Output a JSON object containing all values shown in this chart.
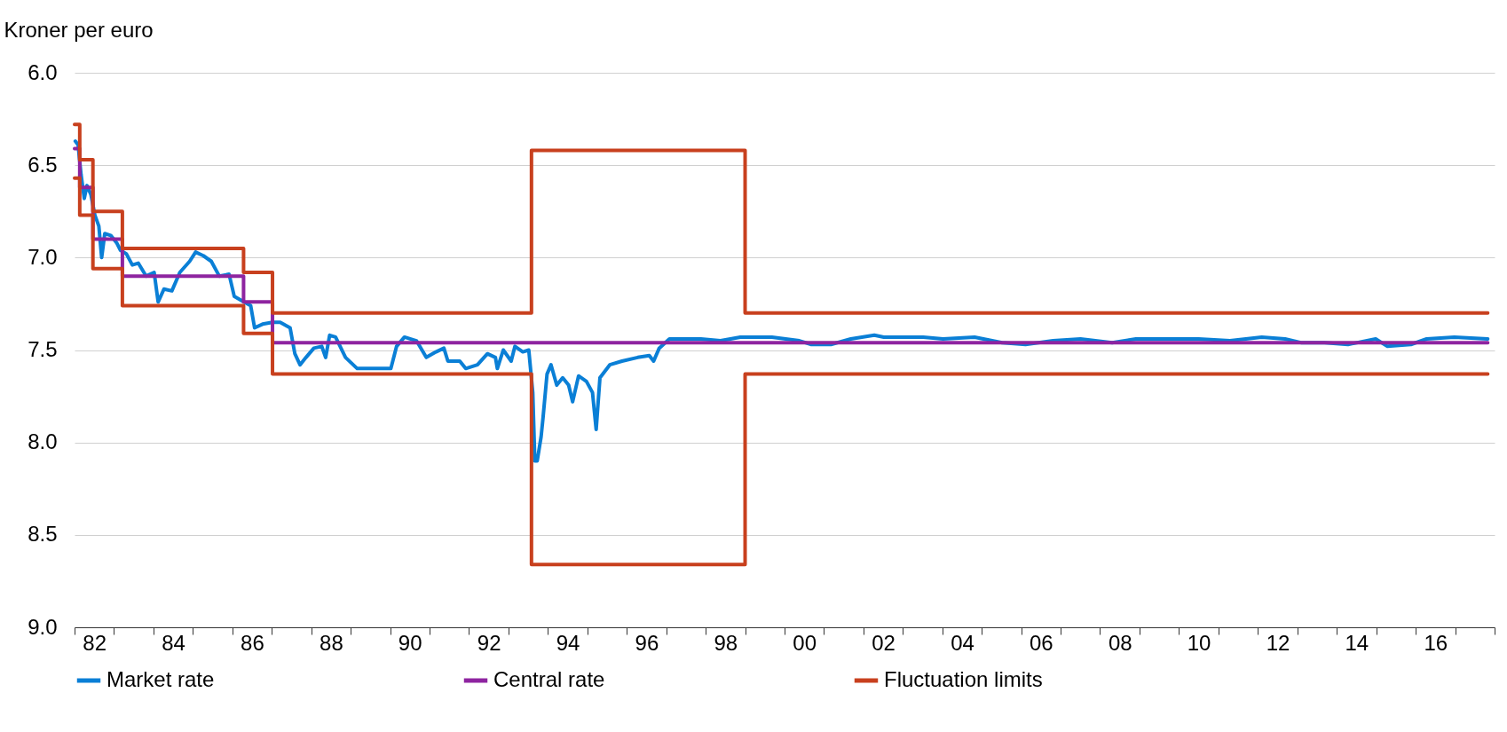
{
  "chart_data": {
    "type": "line",
    "ylabel": "Kroner per euro",
    "xlim": [
      "1982-01-01",
      "2018-01-01"
    ],
    "ylim": [
      9,
      6
    ],
    "yticks": [
      {
        "value": 6,
        "label": "6.0"
      },
      {
        "value": 6.5,
        "label": "6.5"
      },
      {
        "value": 7,
        "label": "7.0"
      },
      {
        "value": 7.5,
        "label": "7.5"
      },
      {
        "value": 8,
        "label": "8.0"
      },
      {
        "value": 8.5,
        "label": "8.5"
      },
      {
        "value": 9,
        "label": "9.0"
      }
    ],
    "xticks": [
      {
        "value": "1982-01-01",
        "label": null
      },
      {
        "value": "1982-07-02",
        "label": "82"
      },
      {
        "value": "1983-01-01",
        "label": null
      },
      {
        "value": "1984-01-01",
        "label": null
      },
      {
        "value": "1984-07-02",
        "label": "84"
      },
      {
        "value": "1985-01-01",
        "label": null
      },
      {
        "value": "1986-01-01",
        "label": null
      },
      {
        "value": "1986-07-02",
        "label": "86"
      },
      {
        "value": "1987-01-01",
        "label": null
      },
      {
        "value": "1988-01-01",
        "label": null
      },
      {
        "value": "1988-07-02",
        "label": "88"
      },
      {
        "value": "1989-01-01",
        "label": null
      },
      {
        "value": "1990-01-01",
        "label": null
      },
      {
        "value": "1990-07-02",
        "label": "90"
      },
      {
        "value": "1991-01-01",
        "label": null
      },
      {
        "value": "1992-01-01",
        "label": null
      },
      {
        "value": "1992-07-02",
        "label": "92"
      },
      {
        "value": "1993-01-01",
        "label": null
      },
      {
        "value": "1994-01-01",
        "label": null
      },
      {
        "value": "1994-07-02",
        "label": "94"
      },
      {
        "value": "1995-01-01",
        "label": null
      },
      {
        "value": "1996-01-01",
        "label": null
      },
      {
        "value": "1996-07-02",
        "label": "96"
      },
      {
        "value": "1997-01-01",
        "label": null
      },
      {
        "value": "1998-01-01",
        "label": null
      },
      {
        "value": "1998-07-02",
        "label": "98"
      },
      {
        "value": "1999-01-01",
        "label": null
      },
      {
        "value": "2000-01-01",
        "label": null
      },
      {
        "value": "2000-07-02",
        "label": "00"
      },
      {
        "value": "2001-01-01",
        "label": null
      },
      {
        "value": "2002-01-01",
        "label": null
      },
      {
        "value": "2002-07-02",
        "label": "02"
      },
      {
        "value": "2003-01-01",
        "label": null
      },
      {
        "value": "2004-01-01",
        "label": null
      },
      {
        "value": "2004-07-02",
        "label": "04"
      },
      {
        "value": "2005-01-01",
        "label": null
      },
      {
        "value": "2006-01-01",
        "label": null
      },
      {
        "value": "2006-07-02",
        "label": "06"
      },
      {
        "value": "2007-01-01",
        "label": null
      },
      {
        "value": "2008-01-01",
        "label": null
      },
      {
        "value": "2008-07-02",
        "label": "08"
      },
      {
        "value": "2009-01-01",
        "label": null
      },
      {
        "value": "2010-01-01",
        "label": null
      },
      {
        "value": "2010-07-02",
        "label": "10"
      },
      {
        "value": "2011-01-01",
        "label": null
      },
      {
        "value": "2012-01-01",
        "label": null
      },
      {
        "value": "2012-07-02",
        "label": "12"
      },
      {
        "value": "2013-01-01",
        "label": null
      },
      {
        "value": "2014-01-01",
        "label": null
      },
      {
        "value": "2014-07-02",
        "label": "14"
      },
      {
        "value": "2015-01-01",
        "label": null
      },
      {
        "value": "2016-01-01",
        "label": null
      },
      {
        "value": "2016-07-02",
        "label": "16"
      },
      {
        "value": "2017-01-01",
        "label": null
      },
      {
        "value": "2018-01-01",
        "label": null
      }
    ],
    "grid": "y",
    "legend": "bottom",
    "series": [
      {
        "name": "Market rate",
        "color": "#0a7fd6",
        "x": [
          "1982-01-08",
          "1982-02-03",
          "1982-03-02",
          "1982-04-01",
          "1982-04-26",
          "1982-06-02",
          "1982-07-08",
          "1982-08-14",
          "1982-09-09",
          "1982-10-08",
          "1982-12-02",
          "1983-01-26",
          "1983-03-02",
          "1983-04-26",
          "1983-06-20",
          "1983-08-14",
          "1983-10-26",
          "1984-01-08",
          "1984-02-14",
          "1984-04-08",
          "1984-06-20",
          "1984-09-02",
          "1984-12-02",
          "1985-01-26",
          "1985-04-08",
          "1985-06-20",
          "1985-09-02",
          "1985-12-02",
          "1986-01-19",
          "1986-03-20",
          "1986-06-20",
          "1986-07-26",
          "1986-10-08",
          "1987-01-08",
          "1987-03-20",
          "1987-06-20",
          "1987-08-03",
          "1987-09-20",
          "1987-11-14",
          "1988-01-26",
          "1988-04-08",
          "1988-05-14",
          "1988-06-20",
          "1988-08-14",
          "1988-11-14",
          "1989-03-02",
          "1989-06-20",
          "1989-10-08",
          "1990-01-08",
          "1990-03-02",
          "1990-05-14",
          "1990-09-02",
          "1990-12-02",
          "1991-03-02",
          "1991-05-14",
          "1991-06-20",
          "1991-10-08",
          "1991-12-02",
          "1992-03-20",
          "1992-06-20",
          "1992-09-02",
          "1992-09-20",
          "1992-11-14",
          "1993-01-26",
          "1993-03-02",
          "1993-05-14",
          "1993-07-08",
          "1993-08-14",
          "1993-09-02",
          "1993-09-24",
          "1993-10-30",
          "1993-11-18",
          "1993-12-24",
          "1994-01-30",
          "1994-03-24",
          "1994-05-18",
          "1994-07-12",
          "1994-08-18",
          "1994-10-12",
          "1994-12-24",
          "1995-02-18",
          "1995-03-24",
          "1995-04-28",
          "1995-07-28",
          "1995-11-18",
          "1996-04-12",
          "1996-07-28",
          "1996-09-06",
          "1996-10-28",
          "1997-01-30",
          "1997-05-18",
          "1997-11-18",
          "1998-05-18",
          "1998-11-18",
          "1999-09-06",
          "2000-05-18",
          "2000-09-06",
          "2001-03-06",
          "2001-09-06",
          "2002-04-12",
          "2002-07-08",
          "2003-07-08",
          "2004-01-08",
          "2004-10-26",
          "2005-07-08",
          "2006-02-10",
          "2006-10-22",
          "2007-07-04",
          "2008-04-22",
          "2008-11-28",
          "2009-09-12",
          "2010-07-01",
          "2011-04-18",
          "2012-02-06",
          "2012-09-09",
          "2013-02-03",
          "2013-09-09",
          "2014-04-15",
          "2014-12-27",
          "2015-04-15",
          "2015-11-18",
          "2016-04-12",
          "2016-12-24",
          "2017-10-30"
        ],
        "values": [
          6.37,
          6.39,
          6.55,
          6.68,
          6.61,
          6.66,
          6.77,
          6.83,
          7.0,
          6.87,
          6.88,
          6.92,
          6.96,
          6.98,
          7.04,
          7.03,
          7.1,
          7.08,
          7.24,
          7.17,
          7.18,
          7.08,
          7.02,
          6.97,
          6.99,
          7.02,
          7.1,
          7.09,
          7.21,
          7.23,
          7.26,
          7.38,
          7.36,
          7.35,
          7.35,
          7.38,
          7.52,
          7.58,
          7.54,
          7.49,
          7.48,
          7.54,
          7.42,
          7.43,
          7.54,
          7.6,
          7.6,
          7.6,
          7.6,
          7.48,
          7.43,
          7.45,
          7.54,
          7.51,
          7.49,
          7.56,
          7.56,
          7.6,
          7.58,
          7.52,
          7.54,
          7.6,
          7.5,
          7.56,
          7.48,
          7.51,
          7.5,
          7.73,
          8.1,
          8.1,
          7.97,
          7.86,
          7.63,
          7.58,
          7.69,
          7.65,
          7.69,
          7.78,
          7.64,
          7.67,
          7.73,
          7.93,
          7.65,
          7.58,
          7.56,
          7.54,
          7.53,
          7.56,
          7.49,
          7.44,
          7.44,
          7.44,
          7.45,
          7.43,
          7.43,
          7.45,
          7.47,
          7.47,
          7.44,
          7.42,
          7.43,
          7.43,
          7.44,
          7.43,
          7.46,
          7.47,
          7.45,
          7.44,
          7.46,
          7.44,
          7.44,
          7.44,
          7.45,
          7.43,
          7.44,
          7.46,
          7.46,
          7.47,
          7.44,
          7.48,
          7.47,
          7.44,
          7.43,
          7.44
        ]
      },
      {
        "name": "Central rate",
        "type": "step",
        "color": "#8e24a0",
        "x": [
          "1982-01-01",
          "1982-02-18",
          "1982-06-20",
          "1983-03-20",
          "1986-04-15",
          "1987-01-08",
          "2017-10-30"
        ],
        "values": [
          6.41,
          6.62,
          6.9,
          7.1,
          7.24,
          7.46,
          7.46
        ]
      },
      {
        "name": "Fluctuation limits",
        "type": "step",
        "color": "#c8401e",
        "x": [
          "1982-01-01",
          "1982-02-18",
          "1982-06-20",
          "1983-03-20",
          "1986-04-15",
          "1987-01-08",
          "1993-08-02",
          "1999-01-01",
          "2017-10-30"
        ],
        "values": [
          6.28,
          6.47,
          6.75,
          6.95,
          7.08,
          7.3,
          6.42,
          7.3,
          7.3
        ]
      },
      {
        "type": "step",
        "color": "#c8401e",
        "x": [
          "1982-01-01",
          "1982-02-18",
          "1982-06-20",
          "1983-03-20",
          "1986-04-15",
          "1987-01-08",
          "1993-08-02",
          "1999-01-01",
          "2017-10-30"
        ],
        "values": [
          6.57,
          6.77,
          7.06,
          7.26,
          7.41,
          7.63,
          8.66,
          7.63,
          7.63
        ]
      }
    ]
  }
}
